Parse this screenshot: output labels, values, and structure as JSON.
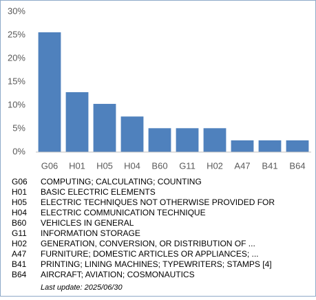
{
  "chart_data": {
    "type": "bar",
    "categories": [
      "G06",
      "H01",
      "H05",
      "H04",
      "B60",
      "G11",
      "H02",
      "A47",
      "B41",
      "B64"
    ],
    "values": [
      25.6,
      12.8,
      10.3,
      7.6,
      5.1,
      5.1,
      5.1,
      2.5,
      2.5,
      2.5
    ],
    "color": "#4f81bd",
    "ylim": [
      0,
      30
    ],
    "yticks": [
      {
        "value": 0,
        "label": "0%"
      },
      {
        "value": 5,
        "label": "5%"
      },
      {
        "value": 10,
        "label": "10%"
      },
      {
        "value": 15,
        "label": "15%"
      },
      {
        "value": 20,
        "label": "20%"
      },
      {
        "value": 25,
        "label": "25%"
      },
      {
        "value": 30,
        "label": "30%"
      }
    ],
    "grid": false
  },
  "legend_table": {
    "rows": [
      [
        "G06",
        "COMPUTING; CALCULATING; COUNTING"
      ],
      [
        "H01",
        "BASIC ELECTRIC ELEMENTS"
      ],
      [
        "H05",
        "ELECTRIC TECHNIQUES NOT OTHERWISE PROVIDED FOR"
      ],
      [
        "H04",
        "ELECTRIC COMMUNICATION TECHNIQUE"
      ],
      [
        "B60",
        "VEHICLES IN GENERAL"
      ],
      [
        "G11",
        "INFORMATION STORAGE"
      ],
      [
        "H02",
        "GENERATION, CONVERSION, OR DISTRIBUTION OF ..."
      ],
      [
        "A47",
        "FURNITURE; DOMESTIC ARTICLES OR APPLIANCES; ..."
      ],
      [
        "B41",
        "PRINTING; LINING MACHINES; TYPEWRITERS; STAMPS [4]"
      ],
      [
        "B64",
        "AIRCRAFT; AVIATION; COSMONAUTICS"
      ]
    ],
    "last_update": "Last update:  2025/06/30"
  }
}
